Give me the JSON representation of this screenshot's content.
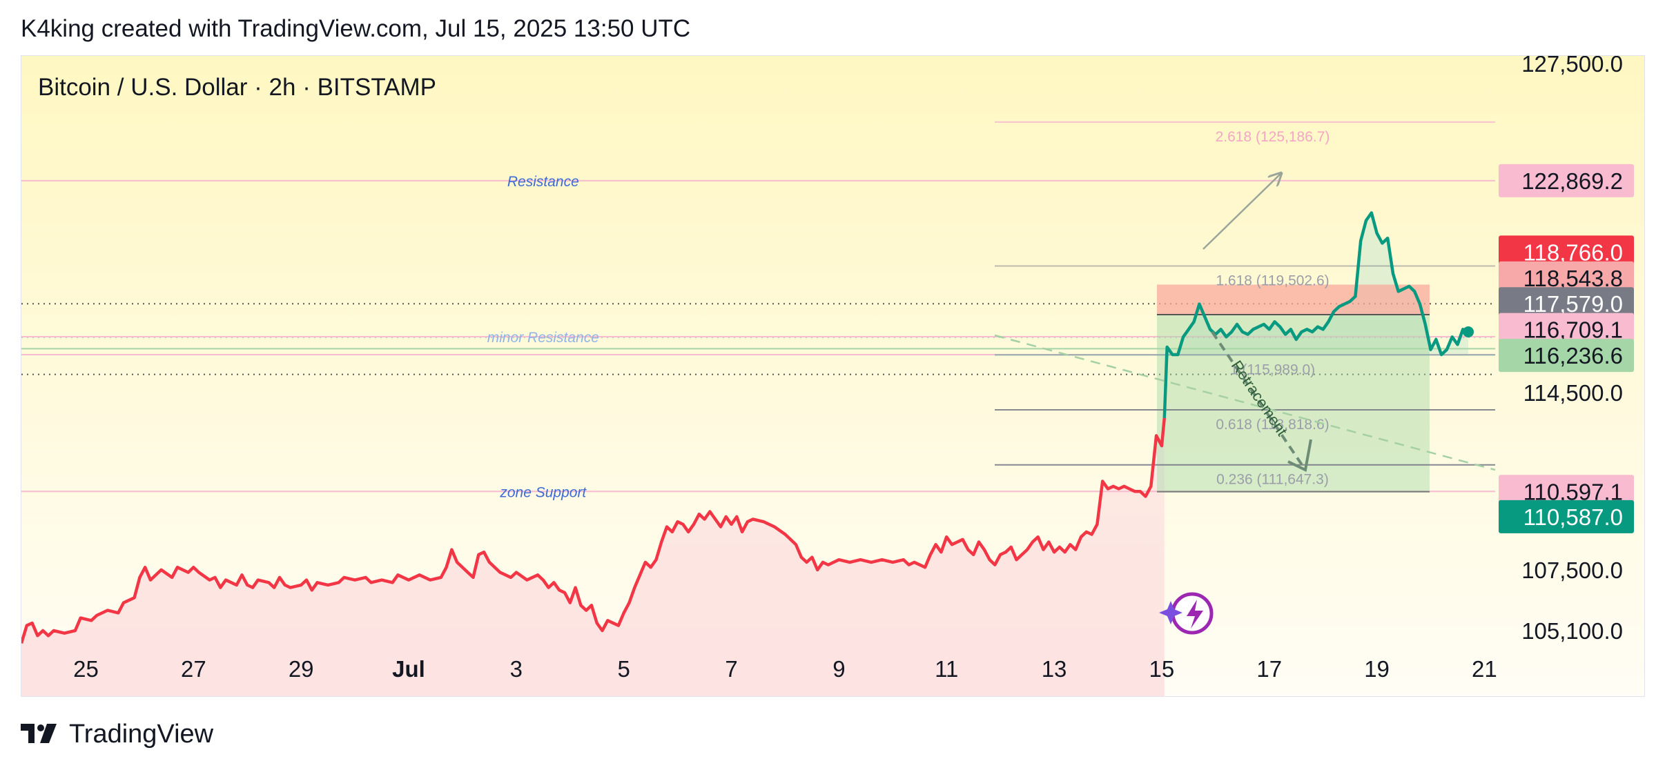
{
  "header": {
    "caption": "K4king created with TradingView.com, Jul 15, 2025 13:50 UTC"
  },
  "symbol": {
    "title": "Bitcoin / U.S. Dollar · 2h · BITSTAMP"
  },
  "footer": {
    "brand": "TradingView"
  },
  "colors": {
    "bear": "#f23645",
    "bull": "#089981",
    "pink_line": "#f8bbd0",
    "label_pink": "#f8bbd0",
    "label_red": "#f23645",
    "label_salmon": "#f7a8a8",
    "label_gray": "#787b86",
    "label_green_light": "#a5d6a7",
    "label_green_dark": "#089981",
    "fib_line": "#787b86",
    "bg_top": "#fff9c4",
    "bg_bottom": "#fde2e2"
  },
  "chart_data": {
    "type": "line",
    "x_ticks": [
      "25",
      "27",
      "29",
      "Jul",
      "3",
      "5",
      "7",
      "9",
      "11",
      "13",
      "15",
      "17",
      "19",
      "21"
    ],
    "x_tick_days": [
      -6,
      -4,
      -2,
      0,
      2,
      4,
      6,
      8,
      10,
      12,
      14,
      16,
      18,
      20
    ],
    "y_ticks": [
      127500,
      114500,
      107500,
      105100
    ],
    "y_tick_labels": [
      "127,500.0",
      "114,500.0",
      "107,500.0",
      "105,100.0"
    ],
    "ylim": [
      104500,
      127800
    ],
    "xlim": [
      -7.2,
      20.2
    ],
    "series": [
      {
        "color": "#f23645",
        "points": [
          [
            -7.2,
            104.6
          ],
          [
            -7.1,
            105.3
          ],
          [
            -7.0,
            105.4
          ],
          [
            -6.9,
            104.9
          ],
          [
            -6.8,
            105.1
          ],
          [
            -6.7,
            104.9
          ],
          [
            -6.6,
            105.1
          ],
          [
            -6.4,
            105.0
          ],
          [
            -6.2,
            105.1
          ],
          [
            -6.1,
            105.6
          ],
          [
            -5.9,
            105.5
          ],
          [
            -5.8,
            105.7
          ],
          [
            -5.6,
            105.9
          ],
          [
            -5.4,
            105.8
          ],
          [
            -5.3,
            106.2
          ],
          [
            -5.1,
            106.4
          ],
          [
            -5.0,
            107.2
          ],
          [
            -4.9,
            107.6
          ],
          [
            -4.8,
            107.1
          ],
          [
            -4.6,
            107.5
          ],
          [
            -4.4,
            107.2
          ],
          [
            -4.3,
            107.6
          ],
          [
            -4.1,
            107.4
          ],
          [
            -4.0,
            107.6
          ],
          [
            -3.9,
            107.4
          ],
          [
            -3.7,
            107.1
          ],
          [
            -3.6,
            107.2
          ],
          [
            -3.5,
            106.8
          ],
          [
            -3.4,
            107.1
          ],
          [
            -3.2,
            106.9
          ],
          [
            -3.1,
            107.3
          ],
          [
            -3.0,
            106.9
          ],
          [
            -2.9,
            106.8
          ],
          [
            -2.8,
            107.1
          ],
          [
            -2.6,
            107.0
          ],
          [
            -2.5,
            106.8
          ],
          [
            -2.4,
            107.2
          ],
          [
            -2.3,
            106.9
          ],
          [
            -2.2,
            106.8
          ],
          [
            -2.0,
            106.9
          ],
          [
            -1.9,
            107.1
          ],
          [
            -1.8,
            106.7
          ],
          [
            -1.7,
            107.0
          ],
          [
            -1.5,
            106.9
          ],
          [
            -1.3,
            107.0
          ],
          [
            -1.2,
            107.2
          ],
          [
            -1.0,
            107.1
          ],
          [
            -0.8,
            107.2
          ],
          [
            -0.7,
            107.0
          ],
          [
            -0.5,
            107.1
          ],
          [
            -0.3,
            107.0
          ],
          [
            -0.2,
            107.3
          ],
          [
            0.0,
            107.1
          ],
          [
            0.2,
            107.3
          ],
          [
            0.4,
            107.1
          ],
          [
            0.6,
            107.2
          ],
          [
            0.7,
            107.6
          ],
          [
            0.8,
            108.3
          ],
          [
            0.9,
            107.8
          ],
          [
            1.1,
            107.4
          ],
          [
            1.2,
            107.2
          ],
          [
            1.3,
            108.1
          ],
          [
            1.4,
            108.2
          ],
          [
            1.5,
            107.8
          ],
          [
            1.7,
            107.4
          ],
          [
            1.9,
            107.2
          ],
          [
            2.0,
            107.4
          ],
          [
            2.2,
            107.1
          ],
          [
            2.4,
            107.3
          ],
          [
            2.5,
            107.1
          ],
          [
            2.6,
            106.8
          ],
          [
            2.7,
            107.0
          ],
          [
            2.8,
            106.7
          ],
          [
            2.9,
            106.6
          ],
          [
            3.0,
            106.2
          ],
          [
            3.1,
            106.8
          ],
          [
            3.2,
            106.1
          ],
          [
            3.3,
            105.9
          ],
          [
            3.4,
            106.1
          ],
          [
            3.5,
            105.4
          ],
          [
            3.6,
            105.1
          ],
          [
            3.7,
            105.5
          ],
          [
            3.9,
            105.3
          ],
          [
            4.0,
            105.8
          ],
          [
            4.1,
            106.2
          ],
          [
            4.2,
            106.8
          ],
          [
            4.3,
            107.3
          ],
          [
            4.4,
            107.8
          ],
          [
            4.5,
            107.6
          ],
          [
            4.6,
            107.9
          ],
          [
            4.7,
            108.6
          ],
          [
            4.8,
            109.2
          ],
          [
            4.9,
            109.0
          ],
          [
            5.0,
            109.4
          ],
          [
            5.1,
            109.3
          ],
          [
            5.2,
            109.0
          ],
          [
            5.3,
            109.3
          ],
          [
            5.4,
            109.7
          ],
          [
            5.5,
            109.5
          ],
          [
            5.6,
            109.8
          ],
          [
            5.7,
            109.5
          ],
          [
            5.8,
            109.2
          ],
          [
            5.9,
            109.6
          ],
          [
            6.0,
            109.3
          ],
          [
            6.1,
            109.6
          ],
          [
            6.2,
            109.0
          ],
          [
            6.3,
            109.4
          ],
          [
            6.4,
            109.5
          ],
          [
            6.6,
            109.4
          ],
          [
            6.8,
            109.2
          ],
          [
            7.0,
            108.9
          ],
          [
            7.2,
            108.5
          ],
          [
            7.3,
            108.0
          ],
          [
            7.4,
            107.8
          ],
          [
            7.5,
            108.0
          ],
          [
            7.6,
            107.5
          ],
          [
            7.7,
            107.8
          ],
          [
            7.8,
            107.7
          ],
          [
            8.0,
            107.9
          ],
          [
            8.2,
            107.8
          ],
          [
            8.4,
            107.9
          ],
          [
            8.6,
            107.8
          ],
          [
            8.8,
            107.9
          ],
          [
            9.0,
            107.8
          ],
          [
            9.2,
            107.9
          ],
          [
            9.3,
            107.7
          ],
          [
            9.4,
            107.8
          ],
          [
            9.6,
            107.6
          ],
          [
            9.7,
            108.1
          ],
          [
            9.8,
            108.5
          ],
          [
            9.9,
            108.2
          ],
          [
            10.0,
            108.8
          ],
          [
            10.1,
            108.5
          ],
          [
            10.3,
            108.7
          ],
          [
            10.4,
            108.3
          ],
          [
            10.5,
            108.1
          ],
          [
            10.6,
            108.6
          ],
          [
            10.7,
            108.3
          ],
          [
            10.8,
            107.9
          ],
          [
            10.9,
            107.7
          ],
          [
            11.0,
            108.1
          ],
          [
            11.1,
            108.2
          ],
          [
            11.2,
            108.4
          ],
          [
            11.3,
            107.9
          ],
          [
            11.5,
            108.3
          ],
          [
            11.6,
            108.6
          ],
          [
            11.7,
            108.8
          ],
          [
            11.8,
            108.3
          ],
          [
            11.9,
            108.6
          ],
          [
            12.0,
            108.2
          ],
          [
            12.1,
            108.4
          ],
          [
            12.2,
            108.2
          ],
          [
            12.3,
            108.5
          ],
          [
            12.4,
            108.3
          ],
          [
            12.5,
            108.8
          ],
          [
            12.6,
            109.0
          ],
          [
            12.7,
            108.9
          ],
          [
            12.8,
            109.3
          ],
          [
            12.9,
            111.0
          ],
          [
            13.0,
            110.7
          ],
          [
            13.1,
            110.8
          ],
          [
            13.2,
            110.7
          ],
          [
            13.3,
            110.8
          ],
          [
            13.4,
            110.7
          ],
          [
            13.5,
            110.6
          ],
          [
            13.6,
            110.6
          ],
          [
            13.7,
            110.4
          ],
          [
            13.8,
            110.8
          ],
          [
            13.9,
            112.8
          ],
          [
            14.0,
            112.4
          ],
          [
            14.05,
            113.5
          ]
        ]
      },
      {
        "color": "#089981",
        "points": [
          [
            14.05,
            113.5
          ],
          [
            14.1,
            116.3
          ],
          [
            14.2,
            116.0
          ],
          [
            14.3,
            116.0
          ],
          [
            14.4,
            116.7
          ],
          [
            14.5,
            117.0
          ],
          [
            14.6,
            117.3
          ],
          [
            14.7,
            118.0
          ],
          [
            14.8,
            117.5
          ],
          [
            14.9,
            117.0
          ],
          [
            15.0,
            116.8
          ],
          [
            15.1,
            117.0
          ],
          [
            15.2,
            116.7
          ],
          [
            15.3,
            116.9
          ],
          [
            15.4,
            117.2
          ],
          [
            15.5,
            116.9
          ],
          [
            15.6,
            116.8
          ],
          [
            15.7,
            117.0
          ],
          [
            15.8,
            117.1
          ],
          [
            15.9,
            117.2
          ],
          [
            16.0,
            117.0
          ],
          [
            16.1,
            117.3
          ],
          [
            16.2,
            117.1
          ],
          [
            16.3,
            116.8
          ],
          [
            16.4,
            117.0
          ],
          [
            16.5,
            116.6
          ],
          [
            16.6,
            116.9
          ],
          [
            16.7,
            117.0
          ],
          [
            16.8,
            116.9
          ],
          [
            16.9,
            117.1
          ],
          [
            17.0,
            117.0
          ],
          [
            17.1,
            117.3
          ],
          [
            17.2,
            117.7
          ],
          [
            17.3,
            117.9
          ],
          [
            17.4,
            118.0
          ],
          [
            17.5,
            118.1
          ],
          [
            17.6,
            118.3
          ],
          [
            17.7,
            120.5
          ],
          [
            17.8,
            121.3
          ],
          [
            17.9,
            121.6
          ],
          [
            18.0,
            120.8
          ],
          [
            18.1,
            120.4
          ],
          [
            18.2,
            120.6
          ],
          [
            18.3,
            119.2
          ],
          [
            18.4,
            118.5
          ],
          [
            18.5,
            118.6
          ],
          [
            18.6,
            118.7
          ],
          [
            18.7,
            118.5
          ],
          [
            18.8,
            118.0
          ],
          [
            18.9,
            117.2
          ],
          [
            19.0,
            116.2
          ],
          [
            19.1,
            116.6
          ],
          [
            19.2,
            116.0
          ],
          [
            19.3,
            116.2
          ],
          [
            19.4,
            116.7
          ],
          [
            19.5,
            116.4
          ],
          [
            19.6,
            117.0
          ],
          [
            19.7,
            116.9
          ]
        ]
      }
    ],
    "last_point": [
      19.7,
      116.9
    ],
    "horizontal_lines": [
      {
        "price": 122869.2,
        "label": "Resistance",
        "label_x": 2.5
      },
      {
        "price": 116709.1,
        "label": "minor Resistance",
        "label_x": 2.5
      },
      {
        "price": 110597.1,
        "label": "zone Support",
        "label_x": 2.5
      },
      {
        "price": 116236.6,
        "label": "",
        "label_x": 0
      },
      {
        "price": 116000.0,
        "label": "",
        "label_x": 0
      }
    ],
    "fib_levels": [
      {
        "label": "2.618 (125,186.7)",
        "price": 125186.7
      },
      {
        "label": "1.618 (119,502.6)",
        "price": 119502.6
      },
      {
        "label": "1 (115,989.0)",
        "price": 115989.0
      },
      {
        "label": "0.618 (113,818.6)",
        "price": 113818.6
      },
      {
        "label": "0.236 (111,647.3)",
        "price": 111647.3
      }
    ],
    "annotation": "Retracement",
    "price_labels": [
      {
        "text": "122,869.2",
        "price": 122869.2,
        "bg": "#f8bbd0",
        "fg": "#131722"
      },
      {
        "text": "118,766.0",
        "price": 120050,
        "bg": "#f23645",
        "fg": "#ffffff"
      },
      {
        "text": "118,543.8",
        "price": 119030,
        "bg": "#f7a8a8",
        "fg": "#131722"
      },
      {
        "text": "117,579.0",
        "price": 118010,
        "bg": "#787b86",
        "fg": "#ffffff"
      },
      {
        "text": "116,709.1",
        "price": 116990,
        "bg": "#f8bbd0",
        "fg": "#131722"
      },
      {
        "text": "116,236.6",
        "price": 115970,
        "bg": "#a5d6a7",
        "fg": "#131722"
      },
      {
        "text": "110,597.1",
        "price": 110597.1,
        "bg": "#f8bbd0",
        "fg": "#131722"
      },
      {
        "text": "110,587.0",
        "price": 109600,
        "bg": "#089981",
        "fg": "#ffffff"
      }
    ]
  }
}
